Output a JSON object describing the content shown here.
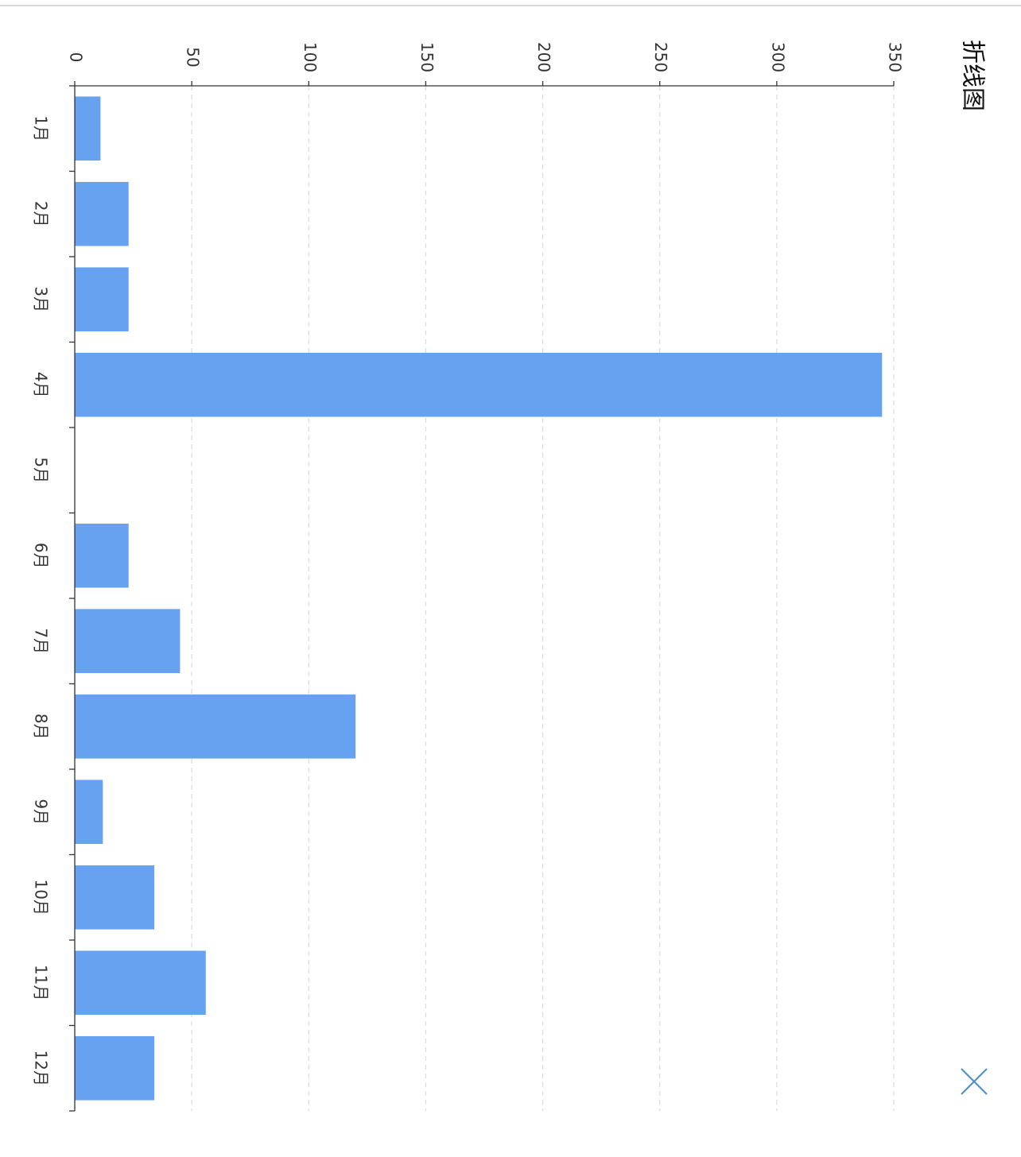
{
  "chart_data": {
    "type": "bar",
    "orientation": "horizontal",
    "title": "折线图",
    "categories": [
      "1月",
      "2月",
      "3月",
      "4月",
      "5月",
      "6月",
      "7月",
      "8月",
      "9月",
      "10月",
      "11月",
      "12月"
    ],
    "values": [
      11,
      23,
      23,
      345,
      0,
      23,
      45,
      120,
      12,
      34,
      56,
      34
    ],
    "color": "#67a2f1",
    "xlim": [
      0,
      350
    ],
    "xticks": [
      0,
      50,
      100,
      150,
      200,
      250,
      300,
      350
    ],
    "grid": true
  }
}
